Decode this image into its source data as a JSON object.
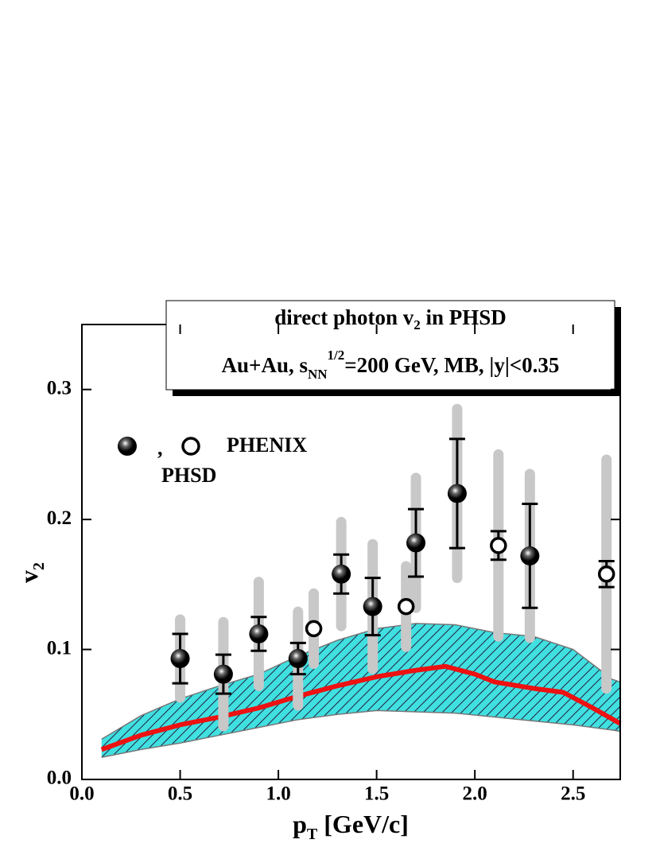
{
  "chart_data": {
    "type": "errorbar",
    "title": {
      "text": "direct photon v",
      "sub": "2",
      "rest": " in PHSD"
    },
    "subtitle": {
      "text": "Au+Au, s",
      "sub": "NN",
      "sup": "1/2",
      "rest": "=200 GeV, MB, |y|<0.35"
    },
    "x_label": {
      "text": "p",
      "sub": "T",
      "rest": " [GeV/c]"
    },
    "y_label": {
      "text": "v",
      "sub": "2"
    },
    "legend_texts": [
      ",",
      "PHENIX",
      "PHSD"
    ],
    "xlim": [
      0,
      2.74
    ],
    "ylim": [
      0,
      0.35
    ],
    "xticks": [
      {
        "value": 0,
        "label": "0.0"
      },
      0.5,
      {
        "value": 1,
        "label": "1.0"
      },
      1.5,
      {
        "value": 2,
        "label": "2.0"
      },
      2.5
    ],
    "yticks": [
      {
        "value": 0,
        "label": "0.0"
      },
      0.1,
      0.2,
      0.3
    ],
    "series": [
      {
        "marker": "filled",
        "color": "#000000",
        "syst_color": "#c8c8c8",
        "x": [
          0.5,
          0.72,
          0.9,
          1.1,
          1.32,
          1.48,
          1.7,
          1.91,
          2.28
        ],
        "values": [
          0.093,
          0.081,
          0.112,
          0.093,
          0.158,
          0.133,
          0.182,
          0.22,
          0.172
        ],
        "stat": [
          0.019,
          0.015,
          0.013,
          0.012,
          0.015,
          0.022,
          0.026,
          0.042,
          0.04
        ],
        "syst": [
          0.03,
          0.04,
          0.04,
          0.036,
          0.04,
          0.048,
          0.05,
          0.065,
          0.063
        ]
      },
      {
        "marker": "open",
        "color": "#000000",
        "syst_color": "#c8c8c8",
        "x": [
          1.18,
          1.65,
          2.12,
          2.67
        ],
        "values": [
          0.116,
          0.133,
          0.18,
          0.158
        ],
        "stat": [
          null,
          null,
          0.011,
          0.01
        ],
        "syst": [
          0.027,
          0.031,
          0.07,
          0.088
        ]
      }
    ],
    "band": {
      "color": "#40e0e0",
      "x": [
        0.1,
        0.3,
        0.5,
        0.7,
        0.9,
        1.1,
        1.3,
        1.5,
        1.7,
        1.9,
        2.1,
        2.3,
        2.5,
        2.7,
        2.74
      ],
      "upper": [
        0.031,
        0.049,
        0.062,
        0.072,
        0.081,
        0.095,
        0.107,
        0.116,
        0.12,
        0.119,
        0.113,
        0.11,
        0.1,
        0.077,
        0.075
      ],
      "lower": [
        0.017,
        0.023,
        0.028,
        0.034,
        0.04,
        0.046,
        0.05,
        0.053,
        0.052,
        0.051,
        0.048,
        0.045,
        0.042,
        0.038,
        0.037
      ]
    },
    "line": {
      "color": "#ee1111",
      "x": [
        0.1,
        0.3,
        0.5,
        0.7,
        0.9,
        1.1,
        1.3,
        1.5,
        1.7,
        1.85,
        2.0,
        2.1,
        2.3,
        2.45,
        2.6,
        2.74
      ],
      "values": [
        0.023,
        0.034,
        0.042,
        0.048,
        0.055,
        0.064,
        0.072,
        0.079,
        0.084,
        0.087,
        0.081,
        0.075,
        0.07,
        0.067,
        0.055,
        0.043
      ]
    }
  }
}
